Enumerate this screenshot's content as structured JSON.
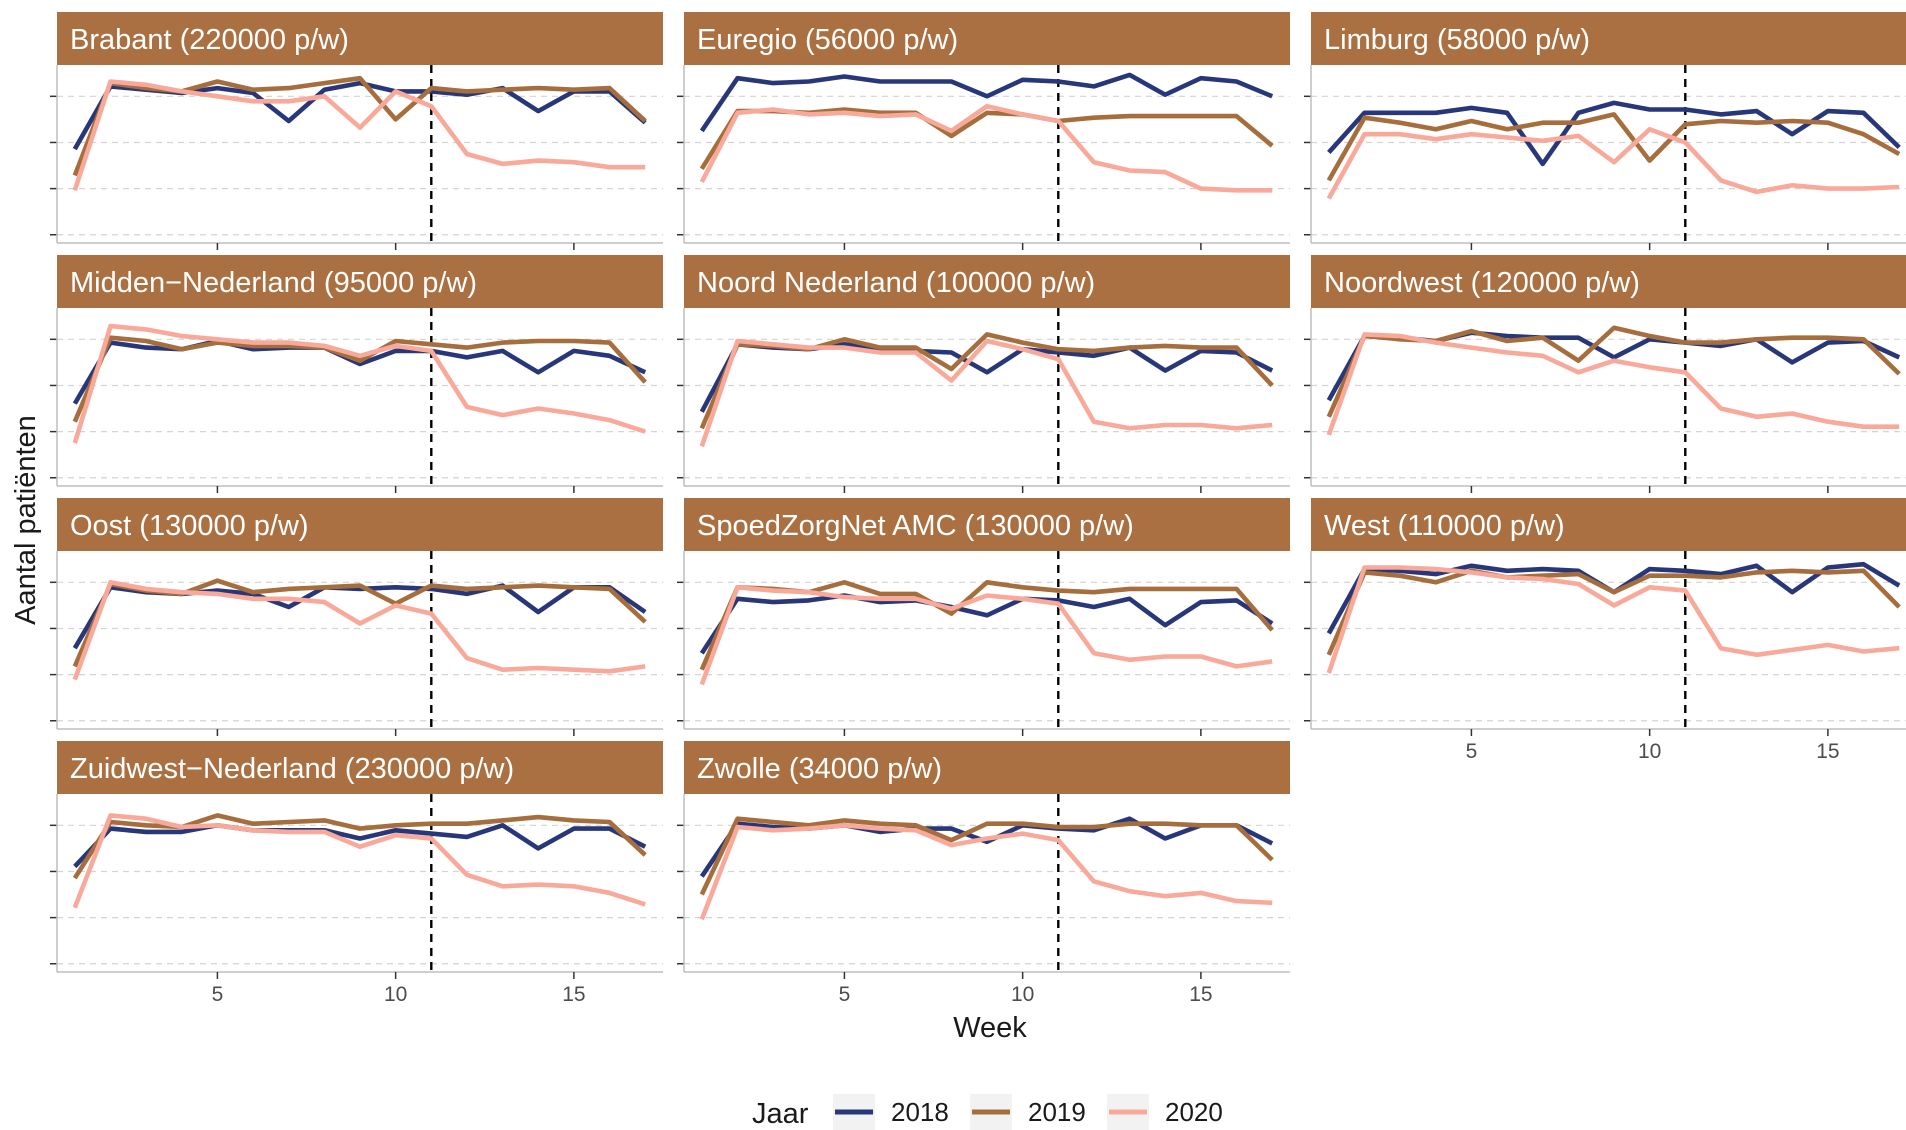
{
  "chart_data": {
    "type": "line",
    "layout": "facet-grid",
    "xlabel": "Week",
    "ylabel": "Aantal patiënten",
    "xlim": [
      0.5,
      17.5
    ],
    "ylim": [
      0,
      1.08
    ],
    "x_ticks": [
      5,
      10,
      15
    ],
    "vline_x": 11,
    "grid": "horizontal dashed",
    "legend": {
      "title": "Jaar",
      "position": "bottom"
    },
    "series_meta": [
      {
        "name": "2018",
        "color": "#283779"
      },
      {
        "name": "2019",
        "color": "#A66E3D"
      },
      {
        "name": "2020",
        "color": "#F8A99A"
      }
    ],
    "panels": [
      {
        "title": "Brabant (220000 p/w)",
        "series": {
          "2018": [
            0.57,
            0.95,
            0.93,
            0.91,
            0.94,
            0.91,
            0.74,
            0.93,
            0.97,
            0.92,
            0.92,
            0.9,
            0.94,
            0.8,
            0.92,
            0.92,
            0.73
          ],
          "2019": [
            0.41,
            0.97,
            0.94,
            0.92,
            0.98,
            0.93,
            0.94,
            0.97,
            1.0,
            0.75,
            0.94,
            0.92,
            0.93,
            0.94,
            0.93,
            0.94,
            0.74
          ],
          "2020": [
            0.32,
            0.98,
            0.96,
            0.92,
            0.89,
            0.86,
            0.86,
            0.89,
            0.7,
            0.92,
            0.83,
            0.54,
            0.48,
            0.5,
            0.49,
            0.46,
            0.46
          ]
        }
      },
      {
        "title": "Euregio (56000 p/w)",
        "series": {
          "2018": [
            0.68,
            1.0,
            0.97,
            0.98,
            1.01,
            0.98,
            0.98,
            0.98,
            0.89,
            0.99,
            0.98,
            0.95,
            1.02,
            0.9,
            1.0,
            0.98,
            0.89
          ],
          "2019": [
            0.45,
            0.8,
            0.8,
            0.79,
            0.81,
            0.79,
            0.79,
            0.65,
            0.79,
            0.78,
            0.74,
            0.76,
            0.77,
            0.77,
            0.77,
            0.77,
            0.59
          ],
          "2020": [
            0.37,
            0.79,
            0.81,
            0.78,
            0.79,
            0.77,
            0.78,
            0.68,
            0.83,
            0.78,
            0.74,
            0.49,
            0.44,
            0.43,
            0.33,
            0.32,
            0.32
          ]
        }
      },
      {
        "title": "Limburg (58000 p/w)",
        "series": {
          "2018": [
            0.55,
            0.79,
            0.79,
            0.79,
            0.82,
            0.79,
            0.48,
            0.79,
            0.85,
            0.81,
            0.81,
            0.78,
            0.8,
            0.66,
            0.8,
            0.79,
            0.58
          ],
          "2019": [
            0.38,
            0.76,
            0.73,
            0.69,
            0.74,
            0.69,
            0.73,
            0.73,
            0.78,
            0.5,
            0.72,
            0.74,
            0.73,
            0.74,
            0.73,
            0.66,
            0.54
          ],
          "2020": [
            0.27,
            0.66,
            0.66,
            0.63,
            0.66,
            0.64,
            0.62,
            0.65,
            0.49,
            0.69,
            0.61,
            0.38,
            0.31,
            0.35,
            0.33,
            0.33,
            0.34
          ]
        }
      },
      {
        "title": "Midden−Nederland (95000 p/w)",
        "series": {
          "2018": [
            0.5,
            0.87,
            0.84,
            0.83,
            0.88,
            0.83,
            0.84,
            0.84,
            0.74,
            0.82,
            0.82,
            0.78,
            0.82,
            0.69,
            0.82,
            0.79,
            0.69
          ],
          "2019": [
            0.39,
            0.9,
            0.88,
            0.83,
            0.87,
            0.85,
            0.85,
            0.84,
            0.76,
            0.88,
            0.86,
            0.84,
            0.87,
            0.88,
            0.88,
            0.87,
            0.63
          ],
          "2020": [
            0.26,
            0.97,
            0.95,
            0.91,
            0.89,
            0.87,
            0.87,
            0.85,
            0.79,
            0.85,
            0.82,
            0.48,
            0.43,
            0.47,
            0.44,
            0.4,
            0.33
          ]
        }
      },
      {
        "title": "Noord Nederland (100000 p/w)",
        "series": {
          "2018": [
            0.45,
            0.86,
            0.84,
            0.83,
            0.86,
            0.83,
            0.82,
            0.81,
            0.69,
            0.83,
            0.81,
            0.79,
            0.84,
            0.7,
            0.82,
            0.81,
            0.7
          ],
          "2019": [
            0.35,
            0.86,
            0.85,
            0.83,
            0.89,
            0.84,
            0.84,
            0.71,
            0.92,
            0.87,
            0.83,
            0.82,
            0.84,
            0.85,
            0.84,
            0.84,
            0.61
          ],
          "2020": [
            0.24,
            0.88,
            0.86,
            0.84,
            0.84,
            0.81,
            0.81,
            0.64,
            0.88,
            0.83,
            0.77,
            0.39,
            0.35,
            0.37,
            0.37,
            0.35,
            0.37
          ]
        }
      },
      {
        "title": "Noordwest (120000 p/w)",
        "series": {
          "2018": [
            0.52,
            0.91,
            0.9,
            0.88,
            0.93,
            0.91,
            0.9,
            0.9,
            0.78,
            0.89,
            0.87,
            0.85,
            0.89,
            0.75,
            0.87,
            0.88,
            0.78
          ],
          "2019": [
            0.42,
            0.91,
            0.89,
            0.88,
            0.94,
            0.88,
            0.9,
            0.76,
            0.96,
            0.91,
            0.87,
            0.87,
            0.89,
            0.9,
            0.9,
            0.89,
            0.68
          ],
          "2020": [
            0.31,
            0.92,
            0.91,
            0.87,
            0.84,
            0.81,
            0.79,
            0.69,
            0.76,
            0.72,
            0.69,
            0.47,
            0.42,
            0.44,
            0.39,
            0.36,
            0.36
          ]
        }
      },
      {
        "title": "Oost (130000 p/w)",
        "series": {
          "2018": [
            0.49,
            0.86,
            0.83,
            0.82,
            0.84,
            0.82,
            0.74,
            0.86,
            0.85,
            0.86,
            0.85,
            0.82,
            0.87,
            0.71,
            0.86,
            0.86,
            0.71
          ],
          "2019": [
            0.38,
            0.88,
            0.84,
            0.82,
            0.9,
            0.83,
            0.85,
            0.86,
            0.87,
            0.76,
            0.87,
            0.85,
            0.86,
            0.87,
            0.86,
            0.85,
            0.65
          ],
          "2020": [
            0.3,
            0.89,
            0.85,
            0.83,
            0.82,
            0.79,
            0.79,
            0.77,
            0.64,
            0.75,
            0.7,
            0.43,
            0.36,
            0.37,
            0.36,
            0.35,
            0.38
          ]
        }
      },
      {
        "title": "SpoedZorgNet AMC (130000 p/w)",
        "series": {
          "2018": [
            0.46,
            0.79,
            0.77,
            0.78,
            0.81,
            0.77,
            0.78,
            0.74,
            0.69,
            0.79,
            0.78,
            0.74,
            0.79,
            0.63,
            0.77,
            0.78,
            0.64
          ],
          "2019": [
            0.36,
            0.86,
            0.85,
            0.83,
            0.89,
            0.82,
            0.82,
            0.7,
            0.89,
            0.86,
            0.84,
            0.83,
            0.85,
            0.85,
            0.85,
            0.85,
            0.6
          ],
          "2020": [
            0.27,
            0.86,
            0.84,
            0.83,
            0.8,
            0.79,
            0.79,
            0.73,
            0.81,
            0.79,
            0.76,
            0.46,
            0.42,
            0.44,
            0.44,
            0.38,
            0.41
          ]
        }
      },
      {
        "title": "West (110000 p/w)",
        "series": {
          "2018": [
            0.58,
            0.97,
            0.96,
            0.94,
            0.99,
            0.96,
            0.97,
            0.96,
            0.83,
            0.97,
            0.96,
            0.94,
            0.99,
            0.83,
            0.98,
            1.0,
            0.87
          ],
          "2019": [
            0.45,
            0.95,
            0.93,
            0.89,
            0.96,
            0.92,
            0.93,
            0.94,
            0.83,
            0.93,
            0.93,
            0.92,
            0.95,
            0.96,
            0.95,
            0.96,
            0.74
          ],
          "2020": [
            0.34,
            0.98,
            0.98,
            0.97,
            0.95,
            0.92,
            0.91,
            0.88,
            0.75,
            0.86,
            0.84,
            0.49,
            0.45,
            0.48,
            0.51,
            0.47,
            0.49
          ]
        }
      },
      {
        "title": "Zuidwest−Nederland (230000 p/w)",
        "series": {
          "2018": [
            0.64,
            0.87,
            0.85,
            0.85,
            0.89,
            0.86,
            0.86,
            0.86,
            0.81,
            0.86,
            0.84,
            0.82,
            0.89,
            0.75,
            0.87,
            0.87,
            0.76
          ],
          "2019": [
            0.57,
            0.91,
            0.89,
            0.88,
            0.95,
            0.9,
            0.91,
            0.92,
            0.87,
            0.89,
            0.9,
            0.9,
            0.92,
            0.94,
            0.92,
            0.91,
            0.71
          ],
          "2020": [
            0.39,
            0.95,
            0.93,
            0.88,
            0.89,
            0.86,
            0.85,
            0.85,
            0.76,
            0.83,
            0.81,
            0.59,
            0.52,
            0.53,
            0.52,
            0.48,
            0.41
          ]
        }
      },
      {
        "title": "Zwolle (34000 p/w)",
        "series": {
          "2018": [
            0.58,
            0.9,
            0.88,
            0.87,
            0.89,
            0.85,
            0.87,
            0.87,
            0.79,
            0.89,
            0.87,
            0.86,
            0.93,
            0.81,
            0.89,
            0.89,
            0.78
          ],
          "2019": [
            0.47,
            0.93,
            0.91,
            0.89,
            0.92,
            0.9,
            0.89,
            0.8,
            0.9,
            0.9,
            0.88,
            0.88,
            0.9,
            0.9,
            0.89,
            0.89,
            0.68
          ],
          "2020": [
            0.32,
            0.88,
            0.86,
            0.87,
            0.89,
            0.87,
            0.86,
            0.77,
            0.81,
            0.84,
            0.8,
            0.55,
            0.49,
            0.46,
            0.48,
            0.43,
            0.42
          ]
        }
      }
    ]
  }
}
